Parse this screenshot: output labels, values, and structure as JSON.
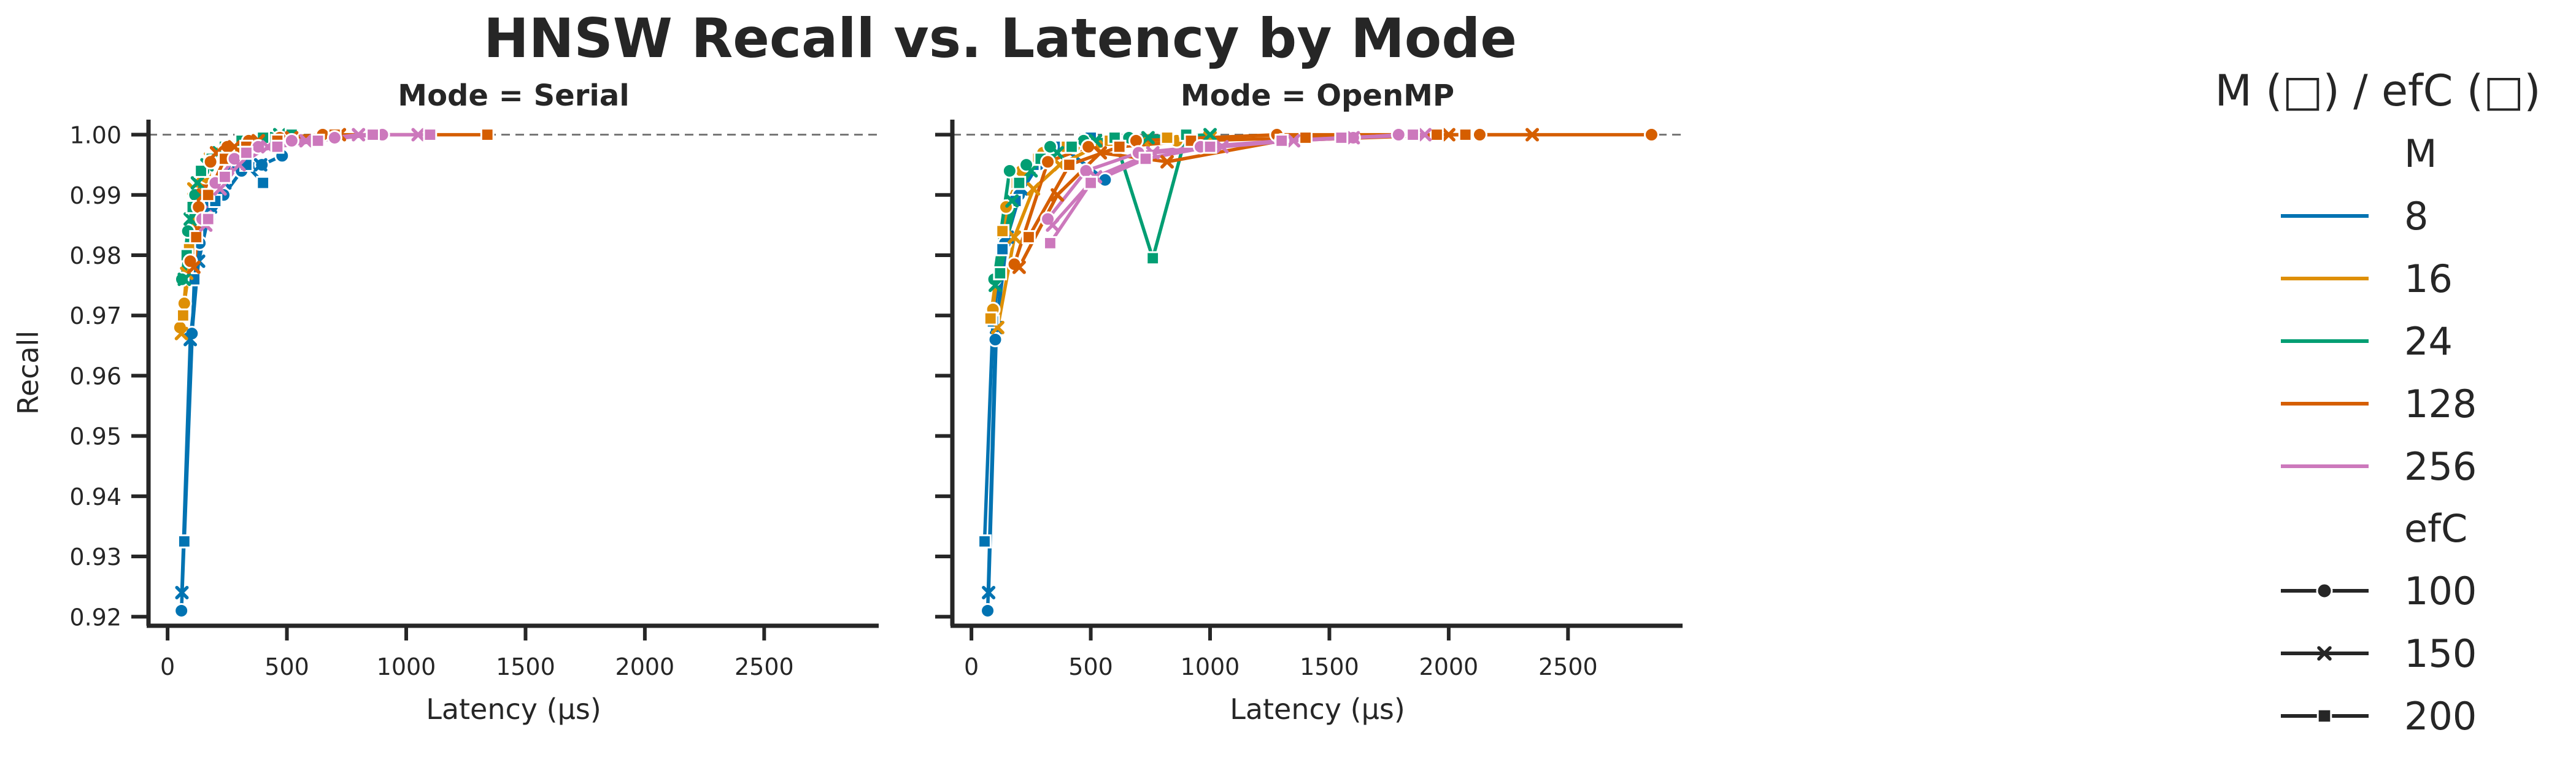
{
  "figure": {
    "title": "HNSW Recall vs. Latency by Mode"
  },
  "legend": {
    "title": "M (□)  / efC (□)",
    "hue_title": "M",
    "style_title": "efC",
    "hue_entries": [
      {
        "label": "8",
        "color": "#0173b2"
      },
      {
        "label": "16",
        "color": "#de8f05"
      },
      {
        "label": "24",
        "color": "#029e73"
      },
      {
        "label": "128",
        "color": "#d55e00"
      },
      {
        "label": "256",
        "color": "#cc78bc"
      }
    ],
    "style_entries": [
      {
        "label": "100",
        "marker": "circle"
      },
      {
        "label": "150",
        "marker": "x"
      },
      {
        "label": "200",
        "marker": "square"
      }
    ]
  },
  "chart_data": [
    {
      "type": "line",
      "title": "Mode = Serial",
      "xlabel": "Latency (µs)",
      "ylabel": "Recall",
      "xlim": [
        -80,
        2980
      ],
      "ylim": [
        0.9185,
        1.0025
      ],
      "xticks": [
        0,
        500,
        1000,
        1500,
        2000,
        2500
      ],
      "yticks": [
        0.92,
        0.93,
        0.94,
        0.95,
        0.96,
        0.97,
        0.98,
        0.99,
        1.0
      ],
      "xtick_labels": [
        "0",
        "500",
        "1000",
        "1500",
        "2000",
        "2500"
      ],
      "ytick_labels": [
        "0.92",
        "0.93",
        "0.94",
        "0.95",
        "0.96",
        "0.97",
        "0.98",
        "0.99",
        "1.00"
      ],
      "reference_line": 1.0,
      "series": [
        {
          "M": "8",
          "efC": "100",
          "x": [
            58,
            102,
            135,
            175,
            235,
            310,
            395,
            480
          ],
          "y": [
            0.921,
            0.967,
            0.982,
            0.986,
            0.99,
            0.994,
            0.995,
            0.9965
          ]
        },
        {
          "M": "8",
          "efC": "150",
          "x": [
            60,
            95,
            130,
            180,
            240,
            300,
            390
          ],
          "y": [
            0.924,
            0.966,
            0.979,
            0.988,
            0.992,
            0.9955,
            0.995
          ]
        },
        {
          "M": "8",
          "efC": "200",
          "x": [
            70,
            112,
            150,
            200,
            270,
            330,
            400
          ],
          "y": [
            0.9325,
            0.976,
            0.986,
            0.989,
            0.996,
            0.995,
            0.992
          ]
        },
        {
          "M": "16",
          "efC": "100",
          "x": [
            52,
            70,
            95,
            125,
            160,
            220,
            290,
            380
          ],
          "y": [
            0.968,
            0.972,
            0.979,
            0.989,
            0.993,
            0.997,
            0.998,
            0.999
          ]
        },
        {
          "M": "16",
          "efC": "150",
          "x": [
            58,
            80,
            110,
            140,
            180,
            240,
            320
          ],
          "y": [
            0.967,
            0.977,
            0.991,
            0.993,
            0.996,
            0.998,
            0.999
          ]
        },
        {
          "M": "16",
          "efC": "200",
          "x": [
            65,
            90,
            120,
            160,
            210,
            280,
            360
          ],
          "y": [
            0.97,
            0.981,
            0.989,
            0.994,
            0.997,
            0.998,
            0.999
          ]
        },
        {
          "M": "24",
          "efC": "100",
          "x": [
            60,
            85,
            115,
            150,
            195,
            255,
            330,
            430
          ],
          "y": [
            0.976,
            0.984,
            0.99,
            0.994,
            0.996,
            0.998,
            0.999,
            0.9995
          ]
        },
        {
          "M": "24",
          "efC": "150",
          "x": [
            70,
            95,
            125,
            165,
            215,
            280,
            360,
            470
          ],
          "y": [
            0.976,
            0.986,
            0.992,
            0.995,
            0.997,
            0.998,
            0.999,
            1.0
          ]
        },
        {
          "M": "24",
          "efC": "200",
          "x": [
            80,
            105,
            140,
            185,
            240,
            310,
            400,
            520
          ],
          "y": [
            0.98,
            0.988,
            0.994,
            0.996,
            0.998,
            0.999,
            0.9995,
            1.0
          ]
        },
        {
          "M": "128",
          "efC": "100",
          "x": [
            95,
            130,
            180,
            250,
            340,
            470,
            650
          ],
          "y": [
            0.979,
            0.988,
            0.9955,
            0.998,
            0.999,
            0.9995,
            1.0
          ]
        },
        {
          "M": "128",
          "efC": "150",
          "x": [
            110,
            150,
            205,
            280,
            380,
            520,
            720
          ],
          "y": [
            0.978,
            0.99,
            0.997,
            0.998,
            0.999,
            0.9995,
            1.0
          ]
        },
        {
          "M": "128",
          "efC": "200",
          "x": [
            120,
            170,
            240,
            330,
            460,
            700,
            1340
          ],
          "y": [
            0.983,
            0.99,
            0.996,
            0.998,
            0.999,
            1.0,
            1.0
          ]
        },
        {
          "M": "256",
          "efC": "100",
          "x": [
            145,
            200,
            280,
            380,
            520,
            700,
            900
          ],
          "y": [
            0.986,
            0.992,
            0.996,
            0.998,
            0.999,
            0.9995,
            1.0
          ]
        },
        {
          "M": "256",
          "efC": "150",
          "x": [
            160,
            220,
            300,
            420,
            580,
            800,
            1050
          ],
          "y": [
            0.985,
            0.991,
            0.995,
            0.998,
            0.999,
            1.0,
            1.0
          ]
        },
        {
          "M": "256",
          "efC": "200",
          "x": [
            170,
            240,
            330,
            460,
            630,
            860,
            1100
          ],
          "y": [
            0.986,
            0.993,
            0.997,
            0.998,
            0.999,
            1.0,
            1.0
          ]
        }
      ]
    },
    {
      "type": "line",
      "title": "Mode = OpenMP",
      "xlabel": "Latency (µs)",
      "ylabel": "",
      "xlim": [
        -80,
        2980
      ],
      "ylim": [
        0.9185,
        1.0025
      ],
      "xticks": [
        0,
        500,
        1000,
        1500,
        2000,
        2500
      ],
      "yticks": [
        0.92,
        0.93,
        0.94,
        0.95,
        0.96,
        0.97,
        0.98,
        0.99,
        1.0
      ],
      "xtick_labels": [
        "0",
        "500",
        "1000",
        "1500",
        "2000",
        "2500"
      ],
      "ytick_labels": [
        "0.92",
        "0.93",
        "0.94",
        "0.95",
        "0.96",
        "0.97",
        "0.98",
        "0.99",
        "1.00"
      ],
      "reference_line": 1.0,
      "series": [
        {
          "M": "8",
          "efC": "100",
          "x": [
            68,
            100,
            140,
            200,
            280,
            380,
            560
          ],
          "y": [
            0.921,
            0.966,
            0.982,
            0.99,
            0.995,
            0.998,
            0.9925
          ]
        },
        {
          "M": "8",
          "efC": "150",
          "x": [
            72,
            105,
            150,
            210,
            300,
            420,
            600
          ],
          "y": [
            0.924,
            0.968,
            0.983,
            0.991,
            0.996,
            0.998,
            0.999
          ]
        },
        {
          "M": "8",
          "efC": "200",
          "x": [
            55,
            90,
            130,
            185,
            260,
            360,
            500
          ],
          "y": [
            0.9325,
            0.969,
            0.981,
            0.989,
            0.995,
            0.998,
            0.9995
          ]
        },
        {
          "M": "16",
          "efC": "100",
          "x": [
            90,
            145,
            210,
            300,
            430,
            620,
            860
          ],
          "y": [
            0.971,
            0.988,
            0.994,
            0.997,
            0.998,
            0.9985,
            0.999
          ]
        },
        {
          "M": "16",
          "efC": "150",
          "x": [
            110,
            180,
            260,
            370,
            520,
            720,
            1000
          ],
          "y": [
            0.968,
            0.983,
            0.991,
            0.995,
            0.998,
            0.999,
            0.9995
          ]
        },
        {
          "M": "16",
          "efC": "200",
          "x": [
            80,
            130,
            190,
            280,
            400,
            580,
            820
          ],
          "y": [
            0.9695,
            0.984,
            0.992,
            0.996,
            0.998,
            0.999,
            0.9995
          ]
        },
        {
          "M": "24",
          "efC": "100",
          "x": [
            95,
            160,
            230,
            330,
            470,
            660,
            900
          ],
          "y": [
            0.976,
            0.994,
            0.995,
            0.998,
            0.999,
            0.9995,
            1.0
          ]
        },
        {
          "M": "24",
          "efC": "150",
          "x": [
            100,
            170,
            250,
            360,
            520,
            740,
            1000
          ],
          "y": [
            0.975,
            0.989,
            0.994,
            0.997,
            0.999,
            0.9995,
            1.0
          ]
        },
        {
          "M": "24",
          "efC": "200",
          "x": [
            120,
            200,
            290,
            420,
            600,
            760,
            900
          ],
          "y": [
            0.977,
            0.992,
            0.996,
            0.998,
            0.9995,
            0.9795,
            1.0
          ]
        },
        {
          "M": "128",
          "efC": "100",
          "x": [
            180,
            320,
            490,
            690,
            1280,
            2130,
            2850
          ],
          "y": [
            0.9785,
            0.9955,
            0.998,
            0.999,
            1.0,
            1.0,
            1.0
          ]
        },
        {
          "M": "128",
          "efC": "150",
          "x": [
            200,
            360,
            540,
            820,
            1300,
            2000,
            2350
          ],
          "y": [
            0.978,
            0.99,
            0.997,
            0.9955,
            0.999,
            1.0,
            1.0
          ]
        },
        {
          "M": "128",
          "efC": "200",
          "x": [
            240,
            410,
            620,
            920,
            1400,
            1950,
            2070
          ],
          "y": [
            0.983,
            0.995,
            0.998,
            0.999,
            0.9995,
            1.0,
            1.0
          ]
        },
        {
          "M": "256",
          "efC": "100",
          "x": [
            320,
            480,
            700,
            960,
            1300,
            1600,
            1790
          ],
          "y": [
            0.986,
            0.994,
            0.997,
            0.998,
            0.999,
            0.9995,
            1.0
          ]
        },
        {
          "M": "256",
          "efC": "150",
          "x": [
            340,
            520,
            760,
            1050,
            1350,
            1600,
            1900
          ],
          "y": [
            0.985,
            0.993,
            0.997,
            0.998,
            0.999,
            0.9995,
            1.0
          ]
        },
        {
          "M": "256",
          "efC": "200",
          "x": [
            330,
            500,
            730,
            1000,
            1300,
            1550,
            1850
          ],
          "y": [
            0.982,
            0.992,
            0.996,
            0.998,
            0.999,
            0.9995,
            1.0
          ]
        }
      ]
    }
  ]
}
